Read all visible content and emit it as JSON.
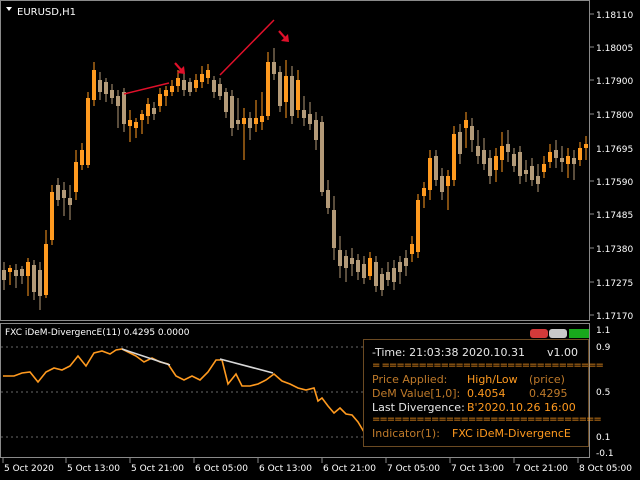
{
  "main_chart": {
    "symbol_label": "EURUSD,H1",
    "colors": {
      "bull": "#ff9a1f",
      "bear": "#b39a78",
      "divergence_line": "#e0102a",
      "arrow": "#e0102a"
    },
    "price_axis_labels": [
      "1.18110",
      "1.18005",
      "1.17900",
      "1.17800",
      "1.17695",
      "1.17590",
      "1.17485",
      "1.17380",
      "1.17275",
      "1.17170"
    ],
    "current_price": "1.17695"
  },
  "indicator": {
    "label": "FXC iDeM-DivergencE(11) 0.4295 0.0000",
    "axis_labels": [
      "1.1",
      "0.9",
      "0.5",
      "0.1",
      "-0.1"
    ],
    "level_lines": [
      0.9,
      0.5,
      0.1
    ],
    "line_color": "#ff9a1f",
    "divergence_line_color": "#d8d8d8",
    "toolbar_colors": [
      "#d33a3a",
      "#c9c9c9",
      "#18a81c"
    ]
  },
  "time_axis_labels": [
    "5 Oct 2020",
    "5 Oct 13:00",
    "5 Oct 21:00",
    "6 Oct 05:00",
    "6 Oct 13:00",
    "6 Oct 21:00",
    "7 Oct 05:00",
    "7 Oct 13:00",
    "7 Oct 21:00",
    "8 Oct 05:00"
  ],
  "info_panel": {
    "time_row": "-Time: 21:03:38 2020.10.31",
    "version": "v1.00",
    "separator": "= ==============================",
    "price_applied_label": "Price Applied:",
    "price_applied_value": "High/Low",
    "price_applied_note": "(price)",
    "dem_value_label": "DeM Value[1,0]:",
    "dem_value_1": "0.4054",
    "dem_value_0": "0.4295",
    "last_divergence_label": "Last Divergence:",
    "last_divergence_value": "B'2020.10.26 16:00",
    "separator2": "===============================",
    "indicator_label": "Indicator(1):",
    "indicator_value": "FXC iDeM-DivergencE"
  }
}
